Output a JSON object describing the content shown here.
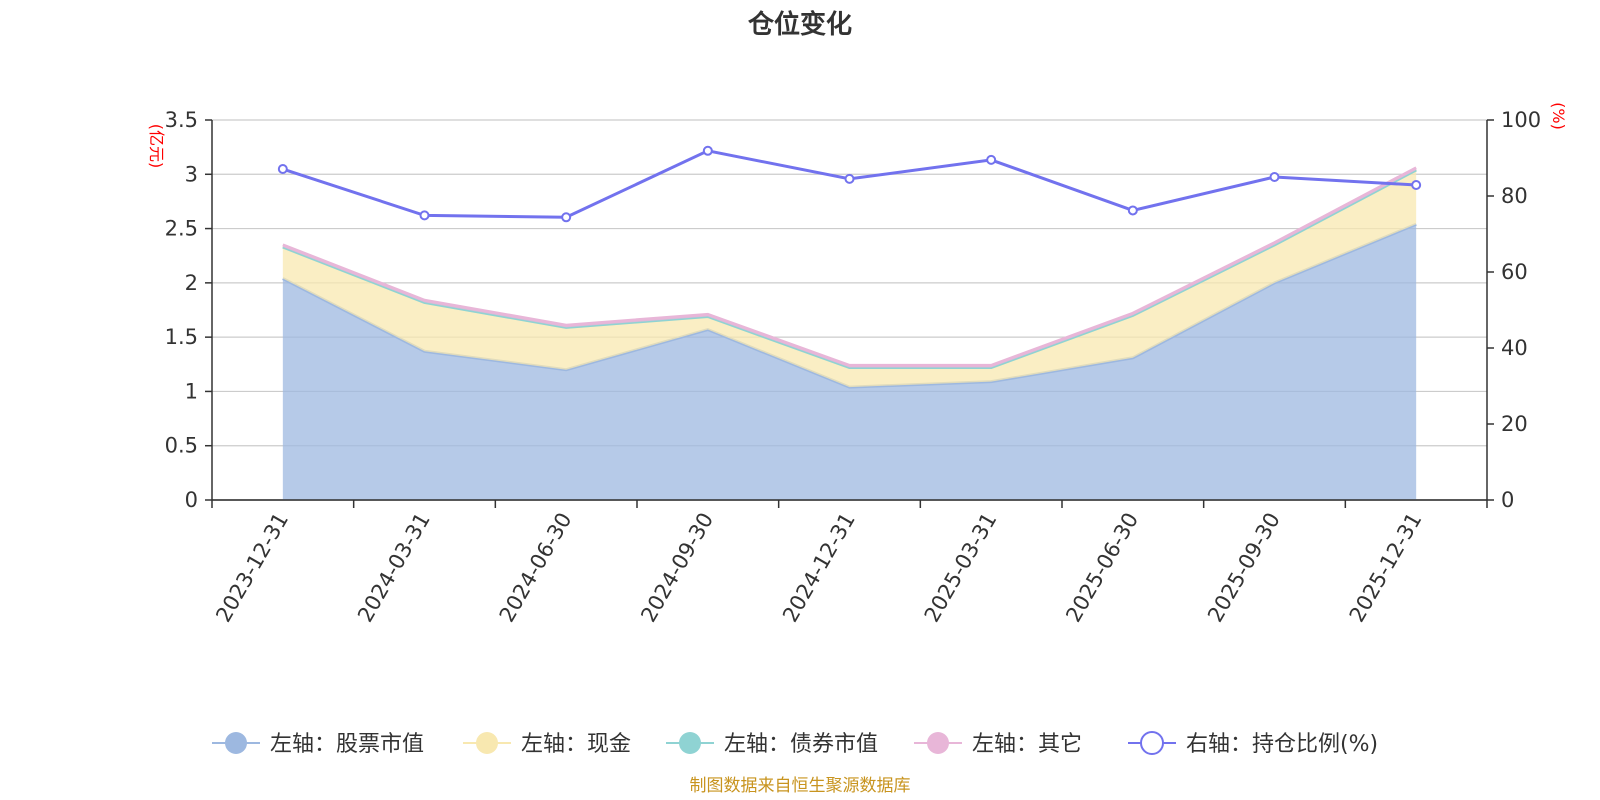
{
  "chart_data": {
    "type": "area",
    "title": "仓位变化",
    "categories": [
      "2023-12-31",
      "2024-03-31",
      "2024-06-30",
      "2024-09-30",
      "2024-12-31",
      "2025-03-31",
      "2025-06-30",
      "2025-09-30",
      "2025-12-31"
    ],
    "left_axis": {
      "unit": "(亿元)",
      "ylim": [
        0,
        3.5
      ],
      "ticks": [
        "0",
        "0.5",
        "1",
        "1.5",
        "2",
        "2.5",
        "3",
        "3.5"
      ]
    },
    "right_axis": {
      "unit": "(%)",
      "ylim": [
        0,
        100
      ],
      "ticks": [
        "0",
        "20",
        "40",
        "60",
        "80",
        "100"
      ]
    },
    "series": [
      {
        "name": "左轴：股票市值",
        "axis": "left",
        "type": "stacked-area",
        "color": "#9db8e0",
        "values": [
          2.04,
          1.37,
          1.2,
          1.57,
          1.04,
          1.09,
          1.31,
          2.0,
          2.54
        ]
      },
      {
        "name": "左轴：现金",
        "axis": "left",
        "type": "stacked-area",
        "color": "#f8e8b0",
        "values": [
          0.29,
          0.45,
          0.39,
          0.12,
          0.18,
          0.13,
          0.39,
          0.35,
          0.5
        ]
      },
      {
        "name": "左轴：债券市值",
        "axis": "left",
        "type": "stacked-area",
        "color": "#8fd3d3",
        "values": [
          0,
          0,
          0,
          0,
          0,
          0,
          0,
          0,
          0
        ]
      },
      {
        "name": "左轴：其它",
        "axis": "left",
        "type": "stacked-area",
        "color": "#e8b6d8",
        "values": [
          0.02,
          0.02,
          0.02,
          0.02,
          0.02,
          0.02,
          0.02,
          0.02,
          0.02
        ]
      },
      {
        "name": "右轴：持仓比例(%)",
        "axis": "right",
        "type": "line",
        "color": "#7272ee",
        "values": [
          87.1,
          74.9,
          74.4,
          91.9,
          84.5,
          89.5,
          76.2,
          85.0,
          82.9
        ]
      }
    ],
    "grid": true,
    "legend_position": "bottom"
  },
  "source_note": "制图数据来自恒生聚源数据库"
}
